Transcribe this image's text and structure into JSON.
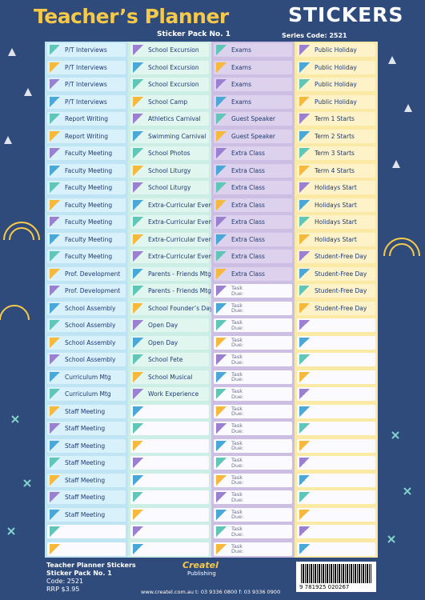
{
  "header": {
    "title": "Teacher’s Planner",
    "stickers": "STICKERS",
    "pack": "Sticker Pack No. 1",
    "series": "Series Code: 2521"
  },
  "columns": [
    {
      "labels": [
        "P/T Interviews",
        "P/T Interviews",
        "P/T Interviews",
        "P/T Interviews",
        "Report Writing",
        "Report Writing",
        "Faculty Meeting",
        "Faculty Meeting",
        "Faculty Meeting",
        "Faculty Meeting",
        "Faculty Meeting",
        "Faculty Meeting",
        "Faculty Meeting",
        "Prof. Development",
        "Prof. Development",
        "School Assembly",
        "School Assembly",
        "School Assembly",
        "School Assembly",
        "Curriculum Mtg",
        "Curriculum Mtg",
        "Staff Meeting",
        "Staff Meeting",
        "Staff Meeting",
        "Staff Meeting",
        "Staff Meeting",
        "Staff Meeting",
        "Staff Meeting"
      ]
    },
    {
      "labels": [
        "School Excursion",
        "School Excursion",
        "School Excursion",
        "School Camp",
        "Athletics Carnival",
        "Swimming Carnival",
        "School Photos",
        "School Liturgy",
        "School Liturgy",
        "Extra-Curricular Event",
        "Extra-Curricular Event",
        "Extra-Curricular Event",
        "Extra-Curricular Event",
        "Parents - Friends Mtg",
        "Parents - Friends Mtg",
        "School Founder’s Day",
        "Open Day",
        "Open Day",
        "School Fete",
        "School Musical",
        "Work Experience"
      ]
    },
    {
      "labels": [
        "Exams",
        "Exams",
        "Exams",
        "Exams",
        "Guest Speaker",
        "Guest Speaker",
        "Extra Class",
        "Extra Class",
        "Extra Class",
        "Extra Class",
        "Extra Class",
        "Extra Class",
        "Extra Class",
        "Extra Class",
        "Task Due:",
        "Task Due:",
        "Task Due:",
        "Task Due:",
        "Task Due:",
        "Task Due:",
        "Task Due:",
        "Task Due:",
        "Task Due:",
        "Task Due:",
        "Task Due:",
        "Task Due:",
        "Task Due:",
        "Task Due:",
        "Task Due:",
        "Task Due:"
      ]
    },
    {
      "labels": [
        "Public Holiday",
        "Public Holiday",
        "Public Holiday",
        "Public Holiday",
        "Term 1 Starts",
        "Term 2 Starts",
        "Term 3 Starts",
        "Term 4 Starts",
        "Holidays Start",
        "Holidays Start",
        "Holidays Start",
        "Holidays Start",
        "Student-Free Day",
        "Student-Free Day",
        "Student-Free Day",
        "Student-Free Day"
      ]
    }
  ],
  "footer": {
    "product": "Teacher Planner Stickers",
    "pack": "Sticker Pack No. 1",
    "code": "Code: 2521",
    "price": "RRP $3.95",
    "brand": "Createl",
    "brand_sub": "Publishing",
    "contact": "www.createl.com.au t: 03 9336 0800 f: 03 9336 0900",
    "barcode": "9 781925 020267"
  }
}
